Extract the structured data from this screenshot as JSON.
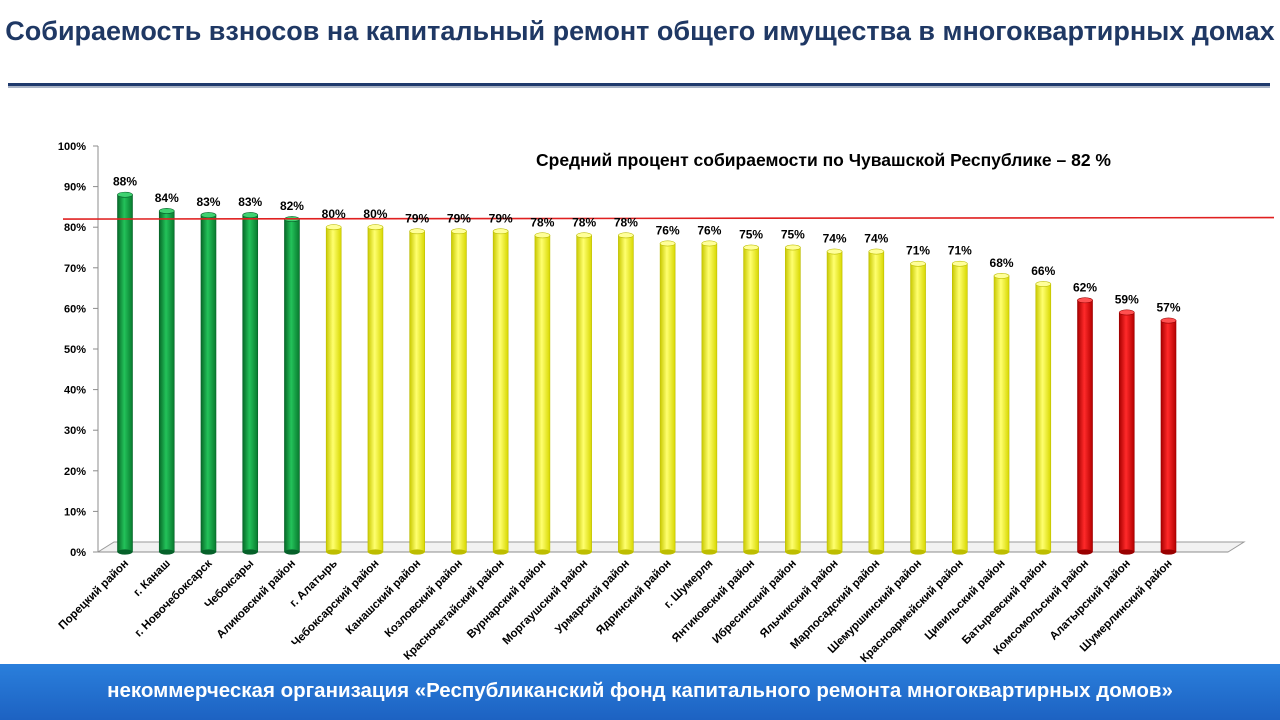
{
  "page": {
    "title": "Собираемость взносов на капитальный ремонт общего имущества в многоквартирных  домах",
    "footer": "некоммерческая организация «Республиканский фонд капитального ремонта многоквартирных домов»"
  },
  "chart_data": {
    "type": "bar",
    "title": "",
    "xlabel": "",
    "ylabel": "",
    "ylim": [
      0,
      100
    ],
    "yticks": [
      "0%",
      "10%",
      "20%",
      "30%",
      "40%",
      "50%",
      "60%",
      "70%",
      "80%",
      "90%",
      "100%"
    ],
    "categories": [
      "Порецкий район",
      "г. Канаш",
      "г. Новочебоксарск",
      "Чебоксары",
      "Аликовский район",
      "г. Алатырь",
      "Чебоксарский район",
      "Канашский район",
      "Козловский район",
      "Красночетайский район",
      "Вурнарский район",
      "Моргаушский район",
      "Урмарский район",
      "Ядринский район",
      "г. Шумерля",
      "Янтиковский район",
      "Ибресинский район",
      "Яльчикский район",
      "Марпосадский район",
      "Шемуршинский район",
      "Красноармейский район",
      "Цивильский район",
      "Батыревский район",
      "Комсомольский район",
      "Алатырский район",
      "Шумерлинский район"
    ],
    "values": [
      88,
      84,
      83,
      83,
      82,
      80,
      80,
      79,
      79,
      79,
      78,
      78,
      78,
      76,
      76,
      75,
      75,
      74,
      74,
      71,
      71,
      68,
      66,
      62,
      59,
      57
    ],
    "value_labels": [
      "88%",
      "84%",
      "83%",
      "83%",
      "82%",
      "80%",
      "80%",
      "79%",
      "79%",
      "79%",
      "78%",
      "78%",
      "78%",
      "76%",
      "76%",
      "75%",
      "75%",
      "74%",
      "74%",
      "71%",
      "71%",
      "68%",
      "66%",
      "62%",
      "59%",
      "57%"
    ],
    "color_groups": [
      "green",
      "green",
      "green",
      "green",
      "green",
      "yellow",
      "yellow",
      "yellow",
      "yellow",
      "yellow",
      "yellow",
      "yellow",
      "yellow",
      "yellow",
      "yellow",
      "yellow",
      "yellow",
      "yellow",
      "yellow",
      "yellow",
      "yellow",
      "yellow",
      "yellow",
      "red",
      "red",
      "red"
    ],
    "colors": {
      "green": "#0e9d40",
      "yellow": "#ffff10",
      "red": "#ee0000",
      "average_line": "#e02020"
    },
    "average": {
      "value": 82,
      "label": "Средний процент собираемости по Чувашской Республике –  82 %"
    },
    "grid": false,
    "legend": "none"
  }
}
